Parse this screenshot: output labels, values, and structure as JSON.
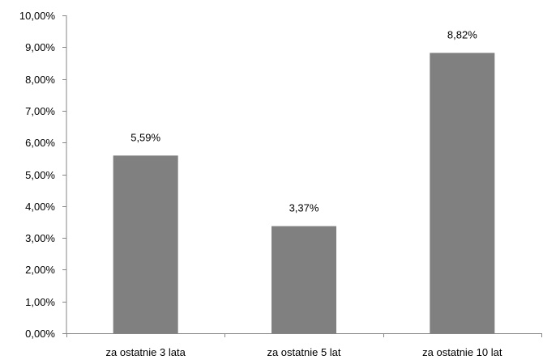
{
  "chart_data": {
    "type": "bar",
    "categories": [
      "za ostatnie 3 lata",
      "za ostatnie 5 lat",
      "za ostatnie 10 lat"
    ],
    "values": [
      5.59,
      3.37,
      8.82
    ],
    "data_labels": [
      "5,59%",
      "3,37%",
      "8,82%"
    ],
    "ylim": [
      0,
      10
    ],
    "y_ticks": [
      0,
      1,
      2,
      3,
      4,
      5,
      6,
      7,
      8,
      9,
      10
    ],
    "y_tick_labels": [
      "0,00%",
      "1,00%",
      "2,00%",
      "3,00%",
      "4,00%",
      "5,00%",
      "6,00%",
      "7,00%",
      "8,00%",
      "9,00%",
      "10,00%"
    ],
    "title": "",
    "xlabel": "",
    "ylabel": "",
    "grid": false,
    "legend": "none",
    "bar_color": "#808080",
    "axis_color": "#868686"
  }
}
